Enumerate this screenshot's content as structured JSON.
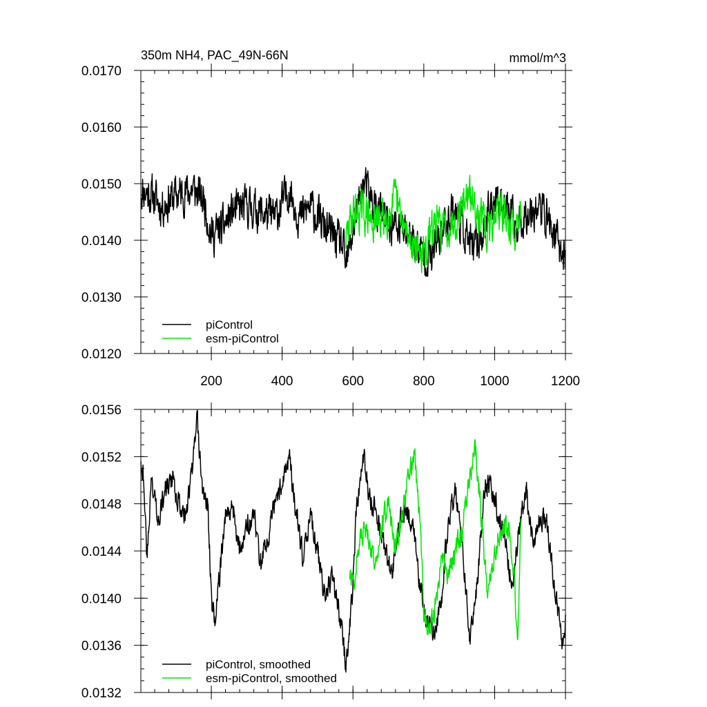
{
  "colors": {
    "picontrol": "#000000",
    "esm_picontrol": "#00e600"
  },
  "chart_data": [
    {
      "type": "line",
      "title": "350m NH4, PAC_49N-66N",
      "units": "mmol/m^3",
      "xlim": [
        1,
        1200
      ],
      "ylim": [
        0.012,
        0.017
      ],
      "y_major_ticks": [
        0.012,
        0.013,
        0.014,
        0.015,
        0.016,
        0.017
      ],
      "y_tick_labels": [
        "0.0120",
        "0.0130",
        "0.0140",
        "0.0150",
        "0.0160",
        "0.0170"
      ],
      "y_minor_step": 0.0002,
      "x_major_ticks": [
        200,
        400,
        600,
        800,
        1000,
        1200
      ],
      "x_tick_labels": [
        "200",
        "400",
        "600",
        "800",
        "1000",
        "1200"
      ],
      "x_minor_step": 40,
      "legend_position": "bottom-left",
      "series": [
        {
          "name": "piControl",
          "color": "#000000",
          "noise": 0.0005,
          "seed": 11,
          "x_start": 1,
          "x_end": 1200,
          "anchors": [
            [
              1,
              0.0149
            ],
            [
              30,
              0.0148
            ],
            [
              60,
              0.0146
            ],
            [
              100,
              0.0148
            ],
            [
              150,
              0.0149
            ],
            [
              180,
              0.0147
            ],
            [
              200,
              0.0141
            ],
            [
              230,
              0.0142
            ],
            [
              260,
              0.0145
            ],
            [
              300,
              0.0146
            ],
            [
              340,
              0.0145
            ],
            [
              380,
              0.0144
            ],
            [
              420,
              0.0149
            ],
            [
              450,
              0.0144
            ],
            [
              480,
              0.0146
            ],
            [
              510,
              0.0143
            ],
            [
              540,
              0.0141
            ],
            [
              570,
              0.0139
            ],
            [
              580,
              0.0135
            ],
            [
              600,
              0.0142
            ],
            [
              630,
              0.015
            ],
            [
              660,
              0.0146
            ],
            [
              700,
              0.0143
            ],
            [
              730,
              0.0142
            ],
            [
              760,
              0.0141
            ],
            [
              790,
              0.0138
            ],
            [
              820,
              0.0137
            ],
            [
              850,
              0.0141
            ],
            [
              880,
              0.0146
            ],
            [
              900,
              0.0144
            ],
            [
              940,
              0.0138
            ],
            [
              970,
              0.0142
            ],
            [
              1000,
              0.0148
            ],
            [
              1030,
              0.0146
            ],
            [
              1060,
              0.0142
            ],
            [
              1090,
              0.0145
            ],
            [
              1120,
              0.0146
            ],
            [
              1150,
              0.0144
            ],
            [
              1180,
              0.0139
            ],
            [
              1200,
              0.0137
            ]
          ]
        },
        {
          "name": "esm-piControl",
          "color": "#00e600",
          "noise": 0.0005,
          "seed": 29,
          "x_start": 580,
          "x_end": 1075,
          "anchors": [
            [
              580,
              0.014
            ],
            [
              600,
              0.0145
            ],
            [
              630,
              0.0145
            ],
            [
              660,
              0.0143
            ],
            [
              690,
              0.0144
            ],
            [
              720,
              0.0147
            ],
            [
              750,
              0.0141
            ],
            [
              780,
              0.0139
            ],
            [
              800,
              0.0137
            ],
            [
              830,
              0.0143
            ],
            [
              860,
              0.0142
            ],
            [
              890,
              0.0144
            ],
            [
              920,
              0.0148
            ],
            [
              950,
              0.0146
            ],
            [
              980,
              0.0141
            ],
            [
              1010,
              0.0146
            ],
            [
              1040,
              0.0143
            ],
            [
              1060,
              0.0141
            ],
            [
              1075,
              0.0147
            ]
          ]
        }
      ]
    },
    {
      "type": "line",
      "title": "",
      "xlim": [
        1,
        1200
      ],
      "ylim": [
        0.0132,
        0.0156
      ],
      "y_major_ticks": [
        0.0132,
        0.0136,
        0.014,
        0.0144,
        0.0148,
        0.0152,
        0.0156
      ],
      "y_tick_labels": [
        "0.0132",
        "0.0136",
        "0.0140",
        "0.0144",
        "0.0148",
        "0.0152",
        "0.0156"
      ],
      "y_minor_step": 0.0001,
      "x_major_ticks": [
        200,
        400,
        600,
        800,
        1000,
        1200
      ],
      "x_minor_step": 40,
      "legend_position": "bottom-left",
      "series": [
        {
          "name": "piControl, smoothed",
          "color": "#000000",
          "noise": 0.00014,
          "seed": 43,
          "x_start": 1,
          "x_end": 1200,
          "anchors": [
            [
              1,
              0.0152
            ],
            [
              10,
              0.015
            ],
            [
              18,
              0.0143
            ],
            [
              30,
              0.015
            ],
            [
              50,
              0.0147
            ],
            [
              70,
              0.0149
            ],
            [
              90,
              0.015
            ],
            [
              110,
              0.0148
            ],
            [
              130,
              0.0147
            ],
            [
              150,
              0.0152
            ],
            [
              160,
              0.0155
            ],
            [
              175,
              0.0149
            ],
            [
              190,
              0.0148
            ],
            [
              200,
              0.014
            ],
            [
              210,
              0.0138
            ],
            [
              220,
              0.0141
            ],
            [
              240,
              0.0147
            ],
            [
              260,
              0.0148
            ],
            [
              280,
              0.0144
            ],
            [
              300,
              0.0146
            ],
            [
              320,
              0.0147
            ],
            [
              340,
              0.0143
            ],
            [
              360,
              0.0145
            ],
            [
              380,
              0.0148
            ],
            [
              400,
              0.015
            ],
            [
              420,
              0.0152
            ],
            [
              440,
              0.0147
            ],
            [
              460,
              0.0143
            ],
            [
              480,
              0.0147
            ],
            [
              500,
              0.0144
            ],
            [
              520,
              0.014
            ],
            [
              540,
              0.0142
            ],
            [
              560,
              0.0139
            ],
            [
              570,
              0.0137
            ],
            [
              580,
              0.0134
            ],
            [
              600,
              0.0141
            ],
            [
              610,
              0.0148
            ],
            [
              630,
              0.0152
            ],
            [
              650,
              0.0148
            ],
            [
              670,
              0.0147
            ],
            [
              690,
              0.0144
            ],
            [
              710,
              0.0142
            ],
            [
              730,
              0.0146
            ],
            [
              750,
              0.0148
            ],
            [
              770,
              0.0146
            ],
            [
              790,
              0.0141
            ],
            [
              810,
              0.0138
            ],
            [
              830,
              0.0137
            ],
            [
              850,
              0.014
            ],
            [
              870,
              0.0147
            ],
            [
              890,
              0.0149
            ],
            [
              910,
              0.0144
            ],
            [
              930,
              0.0136
            ],
            [
              950,
              0.0141
            ],
            [
              970,
              0.0149
            ],
            [
              990,
              0.015
            ],
            [
              1010,
              0.0147
            ],
            [
              1030,
              0.0145
            ],
            [
              1050,
              0.0141
            ],
            [
              1070,
              0.0146
            ],
            [
              1090,
              0.0149
            ],
            [
              1110,
              0.0144
            ],
            [
              1130,
              0.0147
            ],
            [
              1150,
              0.0146
            ],
            [
              1170,
              0.0141
            ],
            [
              1190,
              0.0136
            ],
            [
              1200,
              0.0138
            ]
          ]
        },
        {
          "name": "esm-piControl, smoothed",
          "color": "#00e600",
          "noise": 0.00014,
          "seed": 57,
          "x_start": 590,
          "x_end": 1075,
          "anchors": [
            [
              590,
              0.0142
            ],
            [
              600,
              0.0141
            ],
            [
              620,
              0.0145
            ],
            [
              640,
              0.0146
            ],
            [
              660,
              0.0143
            ],
            [
              680,
              0.0146
            ],
            [
              700,
              0.0148
            ],
            [
              720,
              0.0144
            ],
            [
              740,
              0.0147
            ],
            [
              760,
              0.0151
            ],
            [
              775,
              0.0152
            ],
            [
              790,
              0.0146
            ],
            [
              800,
              0.0139
            ],
            [
              815,
              0.0137
            ],
            [
              830,
              0.0139
            ],
            [
              850,
              0.0143
            ],
            [
              870,
              0.0142
            ],
            [
              890,
              0.0144
            ],
            [
              910,
              0.0146
            ],
            [
              930,
              0.015
            ],
            [
              945,
              0.0153
            ],
            [
              960,
              0.0148
            ],
            [
              980,
              0.014
            ],
            [
              1000,
              0.0144
            ],
            [
              1020,
              0.0146
            ],
            [
              1040,
              0.0146
            ],
            [
              1055,
              0.0142
            ],
            [
              1065,
              0.0136
            ],
            [
              1075,
              0.0147
            ]
          ]
        }
      ]
    }
  ]
}
